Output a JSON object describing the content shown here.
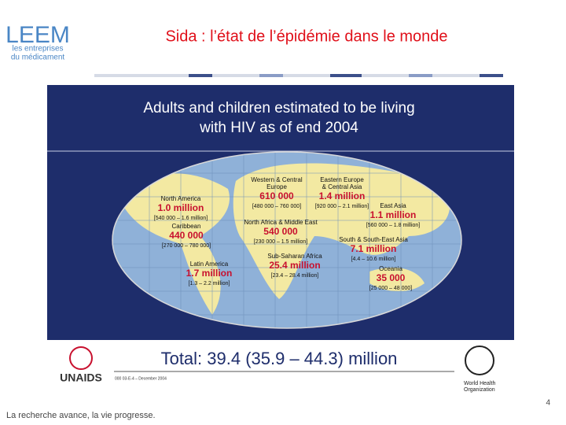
{
  "header": {
    "logo": "LEEM",
    "logo_tagline": [
      "les entreprises",
      "du médicament"
    ],
    "title": "Sida : l’état de l’épidémie dans le monde"
  },
  "panel": {
    "heading": [
      "Adults and children estimated to be living",
      "with HIV as of end 2004"
    ],
    "regions": [
      {
        "name": [
          "North America"
        ],
        "value": "1.0 million",
        "range": "[540 000 – 1.6 million]"
      },
      {
        "name": [
          "Caribbean"
        ],
        "value": "440 000",
        "range": "[270 000 – 780 000]"
      },
      {
        "name": [
          "Latin America"
        ],
        "value": "1.7 million",
        "range": "[1.3 – 2.2 million]"
      },
      {
        "name": [
          "Western & Central",
          "Europe"
        ],
        "value": "610 000",
        "range": "[480 000 – 760 000]"
      },
      {
        "name": [
          "Eastern Europe",
          "& Central Asia"
        ],
        "value": "1.4 million",
        "range": "[920 000 – 2.1 million]"
      },
      {
        "name": [
          "East Asia"
        ],
        "value": "1.1 million",
        "range": "[560 000 – 1.8 million]"
      },
      {
        "name": [
          "North Africa & Middle East"
        ],
        "value": "540 000",
        "range": "[230 000 – 1.5 million]"
      },
      {
        "name": [
          "South & South-East Asia"
        ],
        "value": "7.1 million",
        "range": "[4.4 – 10.6 million]"
      },
      {
        "name": [
          "Sub-Saharan Africa"
        ],
        "value": "25.4 million",
        "range": "[23.4 – 28.4 million]"
      },
      {
        "name": [
          "Oceania"
        ],
        "value": "35 000",
        "range": "[25 000 – 48 000]"
      }
    ],
    "total": "Total: 39.4 (35.9 – 44.3) million",
    "code": "000 03-E-4 – December 2004",
    "unaids": "UNAIDS",
    "who": [
      "World Health",
      "Organization"
    ]
  },
  "footer": {
    "slogan": "La recherche avance, la vie progresse.",
    "page": "4"
  }
}
